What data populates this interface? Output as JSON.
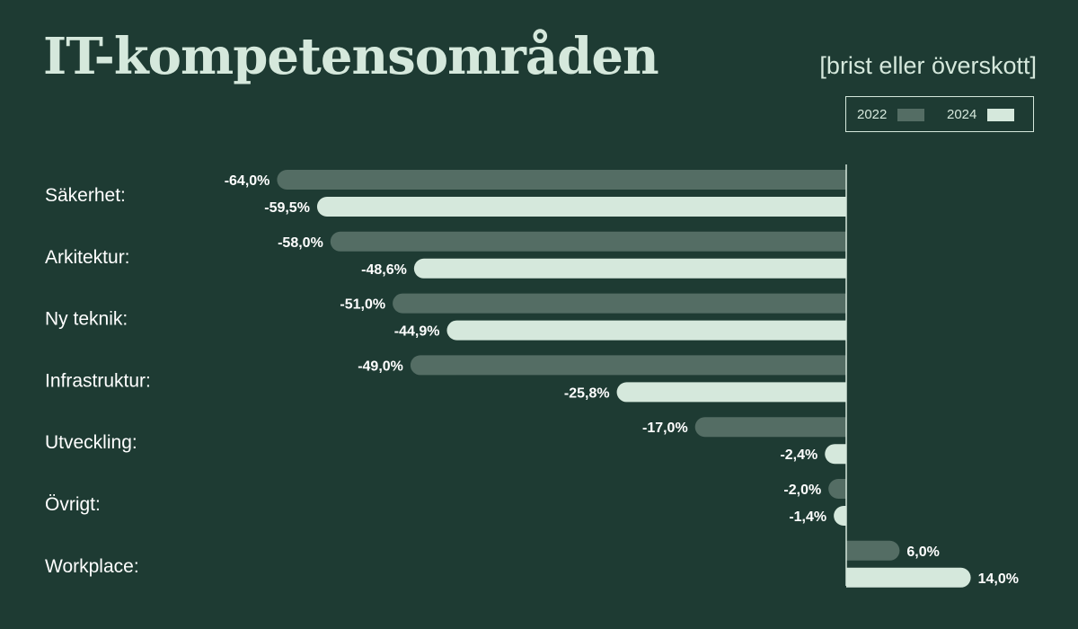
{
  "chart_data": {
    "type": "bar",
    "orientation": "horizontal",
    "title": "IT-kompetensområden",
    "subtitle": "[brist eller överskott]",
    "categories": [
      "Säkerhet:",
      "Arkitektur:",
      "Ny teknik:",
      "Infrastruktur:",
      "Utveckling:",
      "Övrigt:",
      "Workplace:"
    ],
    "series": [
      {
        "name": "2022",
        "color": "#546d64",
        "values": [
          -64.0,
          -58.0,
          -51.0,
          -49.0,
          -17.0,
          -2.0,
          6.0
        ],
        "labels": [
          "-64,0%",
          "-58,0%",
          "-51,0%",
          "-49,0%",
          "-17,0%",
          "-2,0%",
          "6,0%"
        ]
      },
      {
        "name": "2024",
        "color": "#d5e8dc",
        "values": [
          -59.5,
          -48.6,
          -44.9,
          -25.8,
          -2.4,
          -1.4,
          14.0
        ],
        "labels": [
          "-59,5%",
          "-48,6%",
          "-44,9%",
          "-25,8%",
          "-2,4%",
          "-1,4%",
          "14,0%"
        ]
      }
    ],
    "legend_position": "top-right",
    "grid": false,
    "axis_line_color": "#d5e8dc",
    "text_color": "#ffffff",
    "background": "#1e3b33"
  }
}
